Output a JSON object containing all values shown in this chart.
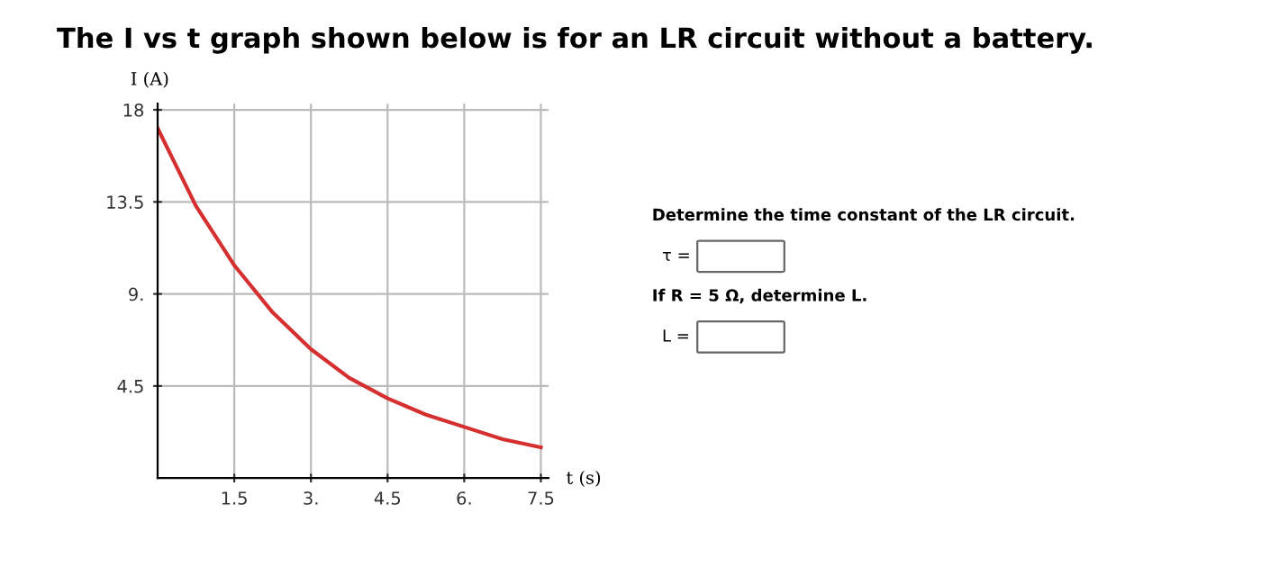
{
  "chart_data": {
    "type": "line",
    "title": "The I vs t graph shown below is for an LR circuit without a battery.",
    "xlabel": "t (s)",
    "ylabel": "I (A)",
    "x": [
      0,
      0.75,
      1.5,
      2.25,
      3,
      3.75,
      4.5,
      5.25,
      6,
      6.75,
      7.5
    ],
    "series": [
      {
        "color": "#d62f2f",
        "values": [
          17.1,
          13.3,
          10.4,
          8.1,
          6.3,
          4.9,
          3.9,
          3.1,
          2.5,
          1.9,
          1.5
        ]
      }
    ],
    "xlim": [
      0,
      7.65
    ],
    "ylim": [
      0,
      18.3
    ],
    "xticks": [
      1.5,
      {
        "value": 3,
        "label": "3."
      },
      4.5,
      {
        "value": 6,
        "label": "6."
      },
      7.5
    ],
    "yticks": [
      4.5,
      {
        "value": 9,
        "label": "9."
      },
      13.5,
      18
    ],
    "grid": true,
    "marker": "none",
    "line_style": "solid",
    "annotations": [
      "Determine the time constant of the LR circuit.",
      "τ =",
      "If R = 5 Ω, determine L.",
      "L ="
    ]
  }
}
